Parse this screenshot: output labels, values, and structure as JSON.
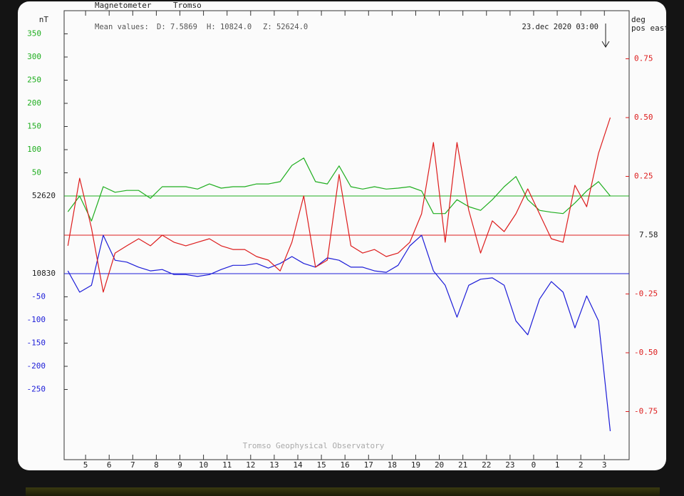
{
  "chart_data": {
    "type": "line",
    "title": "Magnetometer",
    "subtitle": "Tromso",
    "mean_label": "Mean values:",
    "means": [
      "D: 7.5869",
      "H: 10824.0",
      "Z: 52624.0"
    ],
    "timestamp": "23.dec 2020 03:00",
    "left_unit": "nT",
    "right_unit": [
      "deg",
      "pos east"
    ],
    "footer": "Tromso Geophysical Observatory",
    "xlim": [
      4.09,
      28.05
    ],
    "xticks": [
      5,
      6,
      7,
      8,
      9,
      10,
      11,
      12,
      13,
      14,
      15,
      16,
      17,
      18,
      19,
      20,
      21,
      22,
      23,
      {
        "value": 24,
        "label": "0"
      },
      {
        "value": 25,
        "label": "1"
      },
      {
        "value": 26,
        "label": "2"
      },
      {
        "value": 27,
        "label": "3"
      }
    ],
    "axes": {
      "z": {
        "side": "left",
        "color": "#1fae1f",
        "baseline": 52620,
        "ylim": [
          -569.2,
          400
        ],
        "yticks": [
          50,
          100,
          150,
          200,
          250,
          300,
          350
        ]
      },
      "h": {
        "side": "left",
        "color": "#1c1cd8",
        "baseline": 10830,
        "ylim": [
          -401.5,
          567.7
        ],
        "yticks": [
          -50,
          -100,
          -150,
          -200,
          -250
        ]
      },
      "d": {
        "side": "right",
        "color": "#dd1c1c",
        "baseline": 7.58,
        "ylim": [
          -0.9545,
          0.9545
        ],
        "yticks": [
          0.75,
          {
            "value": 0.5,
            "label": "0.50"
          },
          0.25,
          -0.25,
          {
            "value": -0.5,
            "label": "-0.50"
          },
          -0.75
        ]
      }
    },
    "x": [
      4.25,
      4.75,
      5.25,
      5.75,
      6.25,
      6.75,
      7.25,
      7.75,
      8.25,
      8.75,
      9.25,
      9.75,
      10.25,
      10.75,
      11.25,
      11.75,
      12.25,
      12.75,
      13.25,
      13.75,
      14.25,
      14.75,
      15.25,
      15.75,
      16.25,
      16.75,
      17.25,
      17.75,
      18.25,
      18.75,
      19.25,
      19.75,
      20.25,
      20.75,
      21.25,
      21.75,
      22.25,
      22.75,
      23.25,
      23.75,
      24.25,
      24.75,
      25.25,
      25.75,
      26.25,
      26.75,
      27.25
    ],
    "series": [
      {
        "axis": "z",
        "color": "#1fae1f",
        "values": [
          -34,
          0,
          -54,
          20,
          8,
          12,
          12,
          -5,
          20,
          20,
          20,
          15,
          26,
          17,
          20,
          20,
          26,
          26,
          31,
          66,
          82,
          31,
          26,
          65,
          20,
          15,
          20,
          15,
          17,
          20,
          11,
          -38,
          -38,
          -8,
          -23,
          -31,
          -8,
          20,
          42,
          -8,
          -31,
          -35,
          -38,
          -15,
          11,
          31,
          0
        ]
      },
      {
        "axis": "h",
        "color": "#1c1cd8",
        "values": [
          6,
          -40,
          -25,
          83,
          29,
          25,
          14,
          6,
          9,
          -2,
          -2,
          -6,
          -2,
          9,
          18,
          18,
          22,
          12,
          22,
          37,
          22,
          14,
          34,
          29,
          14,
          14,
          6,
          3,
          18,
          60,
          83,
          6,
          -25,
          -94,
          -25,
          -12,
          -9,
          -25,
          -102,
          -132,
          -55,
          -17,
          -40,
          -117,
          -48,
          -102,
          -340
        ]
      },
      {
        "axis": "d",
        "color": "#dd1c1c",
        "values": [
          -0.045,
          0.242,
          0.03,
          -0.242,
          -0.076,
          -0.045,
          -0.015,
          -0.045,
          0,
          -0.03,
          -0.045,
          -0.03,
          -0.015,
          -0.045,
          -0.061,
          -0.061,
          -0.091,
          -0.106,
          -0.152,
          -0.03,
          0.167,
          -0.136,
          -0.106,
          0.258,
          -0.045,
          -0.076,
          -0.061,
          -0.091,
          -0.076,
          -0.03,
          0.091,
          0.394,
          -0.03,
          0.394,
          0.106,
          -0.076,
          0.061,
          0.015,
          0.091,
          0.197,
          0.091,
          -0.015,
          -0.03,
          0.212,
          0.121,
          0.348,
          0.5
        ]
      }
    ]
  }
}
